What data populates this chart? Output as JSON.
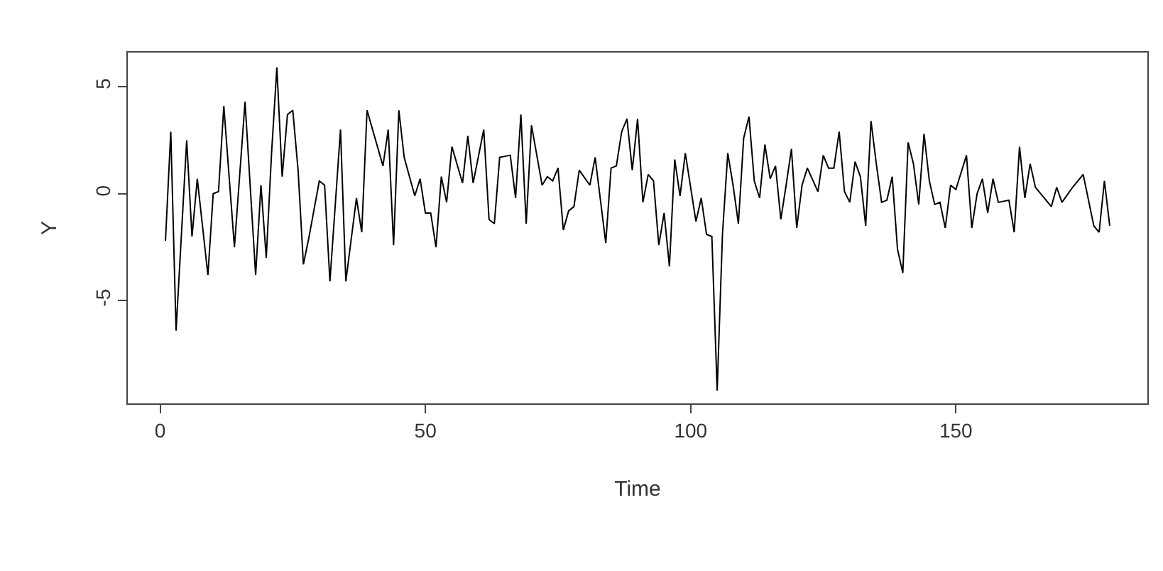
{
  "chart_data": {
    "type": "line",
    "xlabel": "Time",
    "ylabel": "Y",
    "x": [
      1,
      2,
      3,
      5,
      6,
      7,
      9,
      10,
      11,
      12,
      14,
      16,
      18,
      19,
      20,
      21,
      22,
      23,
      24,
      25,
      26,
      27,
      28,
      30,
      31,
      32,
      34,
      35,
      37,
      38,
      39,
      42,
      43,
      44,
      45,
      46,
      48,
      49,
      50,
      51,
      52,
      53,
      54,
      55,
      57,
      58,
      59,
      61,
      62,
      63,
      64,
      66,
      67,
      68,
      69,
      70,
      72,
      73,
      74,
      75,
      76,
      77,
      78,
      79,
      81,
      82,
      84,
      85,
      86,
      87,
      88,
      89,
      90,
      91,
      92,
      93,
      94,
      95,
      96,
      97,
      98,
      99,
      101,
      102,
      103,
      104,
      105,
      106,
      107,
      108,
      109,
      110,
      111,
      112,
      113,
      114,
      115,
      116,
      117,
      118,
      119,
      120,
      121,
      122,
      124,
      125,
      126,
      127,
      128,
      129,
      130,
      131,
      132,
      133,
      134,
      135,
      136,
      137,
      138,
      139,
      140,
      141,
      142,
      143,
      144,
      145,
      146,
      147,
      148,
      149,
      150,
      152,
      153,
      154,
      155,
      156,
      157,
      158,
      160,
      161,
      162,
      163,
      164,
      165,
      166,
      168,
      169,
      170,
      172,
      174,
      176,
      177,
      178,
      179
    ],
    "series": [
      {
        "color": "#000000",
        "values": [
          -2.2,
          2.9,
          -6.4,
          2.5,
          -2.0,
          0.7,
          -3.8,
          0.0,
          0.1,
          4.1,
          -2.5,
          4.3,
          -3.8,
          0.4,
          -3.0,
          1.9,
          5.9,
          0.8,
          3.7,
          3.9,
          1.1,
          -3.3,
          -2.1,
          0.6,
          0.4,
          -4.1,
          3.0,
          -4.1,
          -0.2,
          -1.8,
          3.9,
          1.3,
          3.0,
          -2.4,
          3.9,
          1.7,
          -0.1,
          0.7,
          -0.9,
          -0.9,
          -2.5,
          0.8,
          -0.4,
          2.2,
          0.5,
          2.7,
          0.5,
          3.0,
          -1.2,
          -1.4,
          1.7,
          1.8,
          -0.2,
          3.7,
          -1.4,
          3.2,
          0.4,
          0.8,
          0.6,
          1.2,
          -1.7,
          -0.8,
          -0.6,
          1.1,
          0.4,
          1.7,
          -2.3,
          1.2,
          1.3,
          2.9,
          3.5,
          1.1,
          3.5,
          -0.4,
          0.9,
          0.6,
          -2.4,
          -0.9,
          -3.4,
          1.6,
          -0.1,
          1.9,
          -1.3,
          -0.2,
          -1.9,
          -2.0,
          -9.2,
          -1.9,
          1.9,
          0.4,
          -1.4,
          2.6,
          3.6,
          0.6,
          -0.2,
          2.3,
          0.7,
          1.3,
          -1.2,
          0.4,
          2.1,
          -1.6,
          0.4,
          1.2,
          0.1,
          1.8,
          1.2,
          1.2,
          2.9,
          0.1,
          -0.4,
          1.5,
          0.8,
          -1.5,
          3.4,
          1.4,
          -0.4,
          -0.3,
          0.8,
          -2.6,
          -3.7,
          2.4,
          1.4,
          -0.5,
          2.8,
          0.6,
          -0.5,
          -0.4,
          -1.6,
          0.4,
          0.2,
          1.8,
          -1.6,
          0.0,
          0.7,
          -0.9,
          0.7,
          -0.4,
          -0.3,
          -1.8,
          2.2,
          -0.2,
          1.4,
          0.3,
          0.0,
          -0.6,
          0.3,
          -0.4,
          0.3,
          0.9,
          -1.5,
          -1.8,
          0.6,
          -1.5
        ]
      }
    ],
    "xlim": [
      -6.1,
      186.1
    ],
    "ylim": [
      -9.8,
      6.6
    ],
    "xticks": [
      0,
      50,
      100,
      150
    ],
    "yticks": [
      -5,
      0,
      5
    ],
    "marker": "none",
    "line_style": "solid"
  }
}
